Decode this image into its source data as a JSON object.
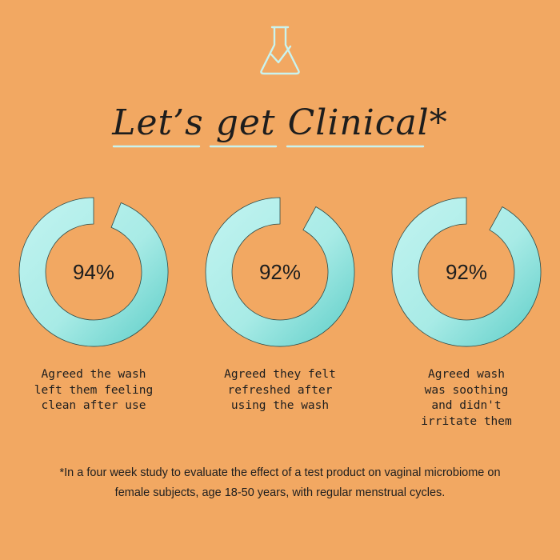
{
  "title": "Let’s get Clinical*",
  "colors": {
    "background": "#f2a862",
    "ring_light": "#b9f0ee",
    "ring_dark": "#5ccdc7",
    "icon": "#c9f3ef"
  },
  "icons": {
    "header": "flask-check-icon"
  },
  "chart_data": {
    "type": "donut",
    "items": [
      {
        "label": "94%",
        "value": 94,
        "description": "Agreed the wash\nleft them feeling\nclean after use"
      },
      {
        "label": "92%",
        "value": 92,
        "description": "Agreed they felt\nrefreshed after\nusing the wash"
      },
      {
        "label": "92%",
        "value": 92,
        "description": "Agreed wash\nwas soothing\nand didn't\nirritate them"
      }
    ]
  },
  "footnote": "*In a four week study to evaluate the effect of a test product on vaginal microbiome on female subjects, age 18-50 years, with regular menstrual cycles."
}
